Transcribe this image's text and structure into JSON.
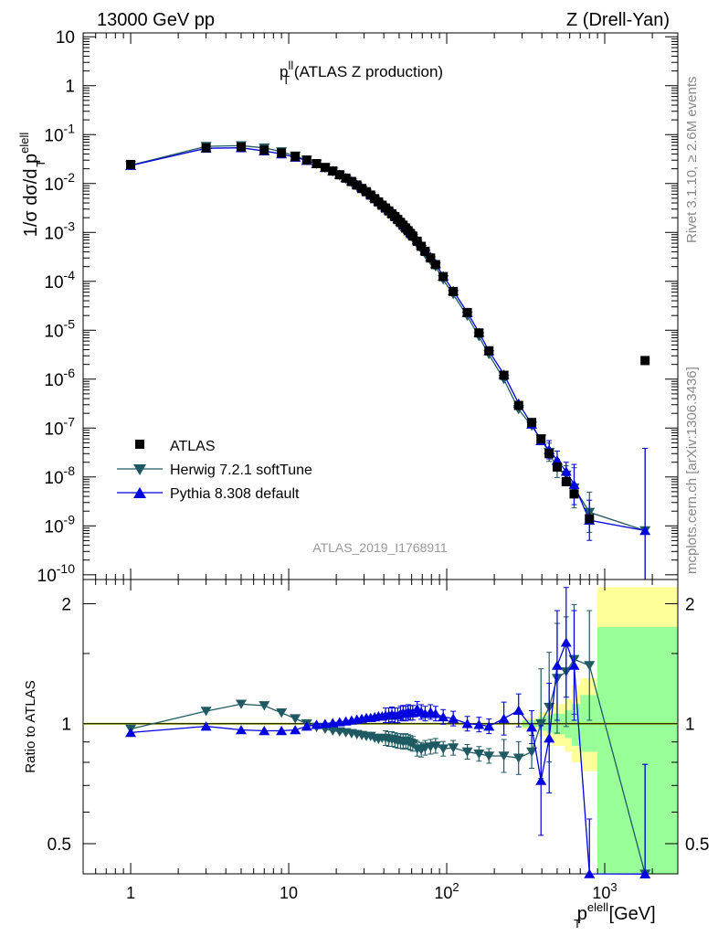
{
  "header": {
    "left": "13000 GeV pp",
    "right": "Z (Drell-Yan)"
  },
  "side_labels": {
    "rivet": "Rivet 3.1.10, ≥ 2.6M events",
    "mcplots": "mcplots.cern.ch [arXiv:1306.3436]"
  },
  "analysis_id": "ATLAS_2019_I1768911",
  "colors": {
    "atlas": "#000000",
    "herwig": "#1f5a63",
    "pythia": "#0000e0",
    "band_inner": "#99ff99",
    "band_outer": "#ffff99",
    "unity_line": "#b4c800"
  },
  "chart_data": [
    {
      "type": "scatter",
      "panel": "main",
      "title": "p_T^ll (ATLAS Z production)",
      "title_parts": {
        "base": "p",
        "sup": "ll",
        "sub": "T",
        "rest": " (ATLAS Z production)"
      },
      "ylabel": "1/σ dσ/d p_T^elell",
      "ylabel_parts": {
        "base": "1/σ dσ/d p",
        "sup": "elell",
        "sub": "T"
      },
      "xscale": "log",
      "yscale": "log",
      "xlim": [
        0.5,
        2900
      ],
      "ylim": [
        8e-11,
        12
      ],
      "x_tick_labels": [
        "1",
        "10",
        "10^2",
        "10^3"
      ],
      "y_tick_labels": [
        "10^-10",
        "10^-9",
        "10^-8",
        "10^-7",
        "10^-6",
        "10^-5",
        "10^-4",
        "10^-3",
        "10^-2",
        "10^-1",
        "1",
        "10"
      ],
      "legend": [
        "ATLAS",
        "Herwig 7.2.1 softTune",
        "Pythia 8.308 default"
      ],
      "legend_position": "bottom-left",
      "x": [
        1,
        3,
        5,
        7,
        9,
        11,
        13,
        15,
        17,
        19,
        21,
        23,
        25,
        27,
        29,
        31,
        33,
        35,
        37,
        39,
        41,
        43,
        45,
        47,
        49,
        51,
        53,
        55,
        57,
        59,
        61,
        65,
        69,
        73,
        79,
        85,
        95,
        110,
        135,
        160,
        185,
        230,
        285,
        345,
        395,
        445,
        500,
        570,
        640,
        800,
        1800
      ],
      "series": [
        {
          "name": "ATLAS",
          "marker": "square",
          "values": [
            0.0245,
            0.0535,
            0.0558,
            0.0482,
            0.0422,
            0.0356,
            0.0301,
            0.0255,
            0.0213,
            0.018,
            0.0151,
            0.0129,
            0.011,
            0.0093,
            0.0079,
            0.0068,
            0.0058,
            0.0049,
            0.0042,
            0.0036,
            0.00315,
            0.00275,
            0.0024,
            0.0021,
            0.00183,
            0.0016,
            0.0014,
            0.00123,
            0.00108,
            0.00095,
            0.00084,
            0.00066,
            0.00052,
            0.00041,
            0.0003,
            0.00022,
            0.000125,
            6.2e-05,
            2.3e-05,
            8.8e-06,
            3.8e-06,
            1.2e-06,
            2.9e-07,
            1.3e-07,
            6e-08,
            3e-08,
            1.6e-08,
            8e-09,
            4.5e-09,
            1.4e-09,
            2.4e-06
          ]
        },
        {
          "name": "Herwig 7.2.1 softTune",
          "marker": "triangle-down",
          "values": [
            0.0237,
            0.0575,
            0.0596,
            0.0535,
            0.0448,
            0.0366,
            0.03,
            0.025,
            0.0207,
            0.0173,
            0.0144,
            0.0122,
            0.0104,
            0.0087,
            0.0074,
            0.0063,
            0.0054,
            0.0045,
            0.0038,
            0.0033,
            0.0029,
            0.0025,
            0.0022,
            0.0019,
            0.00165,
            0.00145,
            0.00126,
            0.00111,
            0.00097,
            0.00085,
            0.00075,
            0.00057,
            0.00045,
            0.00036,
            0.000265,
            0.0002,
            0.000108,
            5.4e-05,
            1.95e-05,
            7.4e-06,
            3.2e-06,
            9.9e-07,
            2.4e-07,
            1.1e-07,
            6e-08,
            3.2e-08,
            1.5e-08,
            1.1e-08,
            6e-09,
            1.9e-09,
            8e-10
          ]
        },
        {
          "name": "Pythia 8.308 default",
          "marker": "triangle-up",
          "values": [
            0.0233,
            0.0525,
            0.0538,
            0.0462,
            0.0402,
            0.0343,
            0.0296,
            0.0253,
            0.0212,
            0.0181,
            0.0153,
            0.0131,
            0.0113,
            0.0096,
            0.0082,
            0.0071,
            0.006,
            0.0052,
            0.0044,
            0.0038,
            0.0033,
            0.0029,
            0.0025,
            0.0022,
            0.0019,
            0.0017,
            0.0015,
            0.0013,
            0.00114,
            0.001,
            0.00089,
            0.0007,
            0.00055,
            0.00043,
            0.00032,
            0.00023,
            0.000128,
            6.4e-05,
            2.3e-05,
            9e-06,
            3.8e-06,
            1.25e-06,
            3.2e-07,
            1.2e-07,
            5.5e-08,
            3.6e-08,
            2.2e-08,
            1.3e-08,
            7e-09,
            1.3e-09,
            8e-10
          ]
        }
      ]
    },
    {
      "type": "scatter",
      "panel": "ratio",
      "ylabel": "Ratio to ATLAS",
      "xlabel": "p_T^elell [GeV]",
      "xlabel_parts": {
        "base": "p",
        "sup": "elell",
        "sub": "T",
        "rest": " [GeV]"
      },
      "xscale": "log",
      "yscale": "log",
      "xlim": [
        0.5,
        2900
      ],
      "ylim": [
        0.42,
        2.3
      ],
      "y_tick_labels": [
        "0.5",
        "1",
        "2"
      ],
      "x": [
        1,
        3,
        5,
        7,
        9,
        11,
        13,
        15,
        17,
        19,
        21,
        23,
        25,
        27,
        29,
        31,
        33,
        35,
        37,
        39,
        41,
        43,
        45,
        47,
        49,
        51,
        53,
        55,
        57,
        59,
        61,
        65,
        69,
        73,
        79,
        85,
        95,
        110,
        135,
        160,
        185,
        230,
        285,
        345,
        395,
        445,
        500,
        570,
        640,
        800,
        1800
      ],
      "series": [
        {
          "name": "Herwig 7.2.1 softTune",
          "marker": "triangle-down",
          "values": [
            0.97,
            1.075,
            1.12,
            1.11,
            1.065,
            1.03,
            1.0,
            0.98,
            0.97,
            0.96,
            0.955,
            0.95,
            0.945,
            0.94,
            0.935,
            0.93,
            0.93,
            0.92,
            0.915,
            0.92,
            0.92,
            0.915,
            0.915,
            0.91,
            0.905,
            0.905,
            0.9,
            0.905,
            0.9,
            0.895,
            0.89,
            0.865,
            0.86,
            0.87,
            0.875,
            0.88,
            0.865,
            0.87,
            0.85,
            0.84,
            0.83,
            0.83,
            0.82,
            0.85,
            1.0,
            1.1,
            1.3,
            1.35,
            1.45,
            1.4,
            0.4
          ]
        },
        {
          "name": "Pythia 8.308 default",
          "marker": "triangle-up",
          "values": [
            0.95,
            0.985,
            0.965,
            0.96,
            0.96,
            0.965,
            0.985,
            0.995,
            1.0,
            1.005,
            1.01,
            1.015,
            1.02,
            1.025,
            1.03,
            1.035,
            1.035,
            1.04,
            1.045,
            1.045,
            1.05,
            1.05,
            1.055,
            1.05,
            1.05,
            1.06,
            1.065,
            1.06,
            1.07,
            1.065,
            1.065,
            1.09,
            1.07,
            1.06,
            1.07,
            1.06,
            1.04,
            1.03,
            1.0,
            0.995,
            0.985,
            1.03,
            1.08,
            0.98,
            0.72,
            0.92,
            1.4,
            1.6,
            1.4,
            0.42,
            0.4
          ]
        }
      ],
      "uncertainty_band": {
        "x_edges": [
          300,
          380,
          430,
          470,
          560,
          620,
          700,
          900,
          2900
        ],
        "inner_lo": [
          0.98,
          0.96,
          0.95,
          0.94,
          0.92,
          0.88,
          0.85,
          0.1
        ],
        "inner_hi": [
          1.02,
          1.04,
          1.05,
          1.06,
          1.08,
          1.12,
          1.18,
          1.75
        ],
        "outer_lo": [
          0.97,
          0.93,
          0.9,
          0.88,
          0.85,
          0.8,
          0.76,
          0.1
        ],
        "outer_hi": [
          1.03,
          1.07,
          1.1,
          1.12,
          1.15,
          1.25,
          1.3,
          2.2
        ]
      }
    }
  ]
}
